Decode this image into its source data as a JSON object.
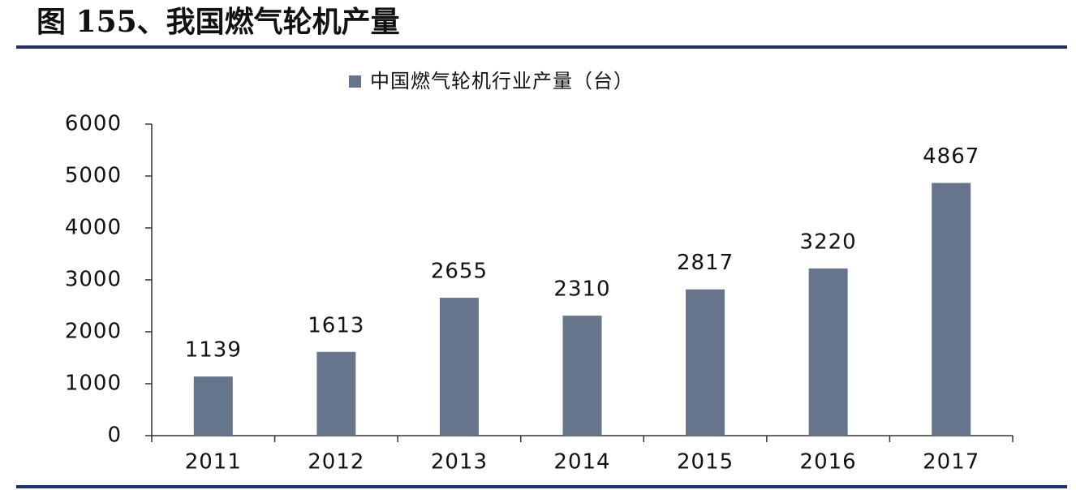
{
  "chart_data": {
    "type": "bar",
    "title": "图 155、我国燃气轮机产量",
    "categories": [
      "2011",
      "2012",
      "2013",
      "2014",
      "2015",
      "2016",
      "2017"
    ],
    "series": [
      {
        "name": "中国燃气轮机行业产量（台）",
        "color": "#67758c",
        "values": [
          1139,
          1613,
          2655,
          2310,
          2817,
          3220,
          4867
        ]
      }
    ],
    "ylim": [
      0,
      6000
    ],
    "yticks": [
      0,
      1000,
      2000,
      3000,
      4000,
      5000,
      6000
    ],
    "legend": "top",
    "grid": false
  }
}
